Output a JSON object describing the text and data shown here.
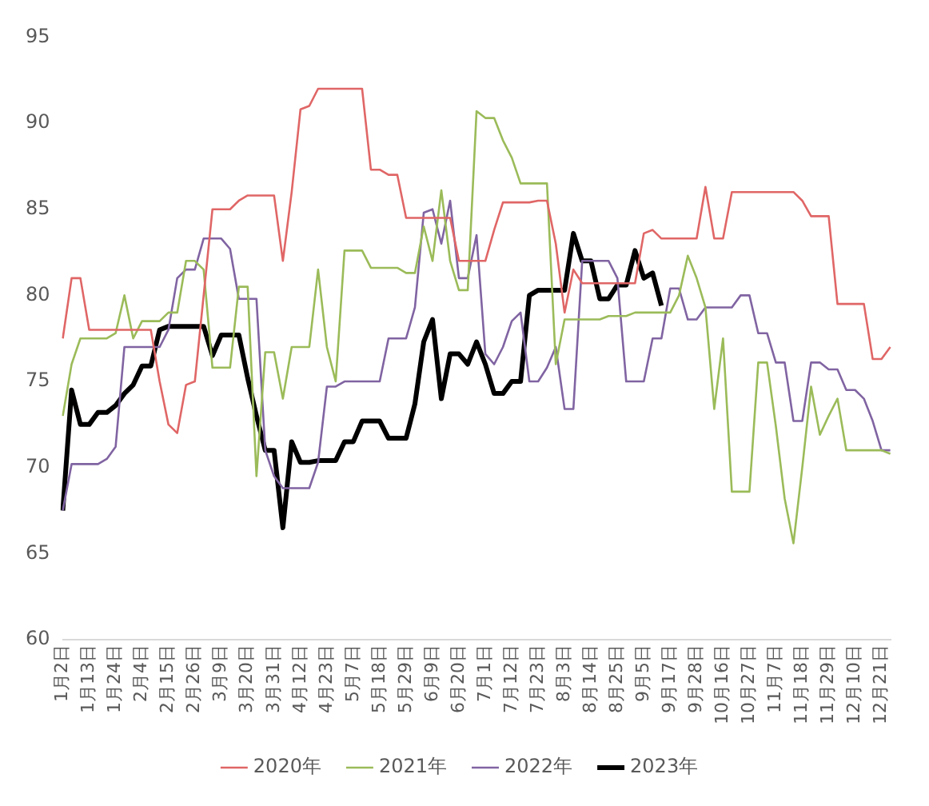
{
  "chart_data": {
    "type": "line",
    "categories": [
      "1月2日",
      null,
      null,
      "1月13日",
      null,
      null,
      "1月24日",
      null,
      null,
      "2月4日",
      null,
      null,
      "2月15日",
      null,
      null,
      "2月26日",
      null,
      null,
      "3月9日",
      null,
      null,
      "3月20日",
      null,
      null,
      "3月31日",
      null,
      null,
      "4月12日",
      null,
      null,
      "4月23日",
      null,
      null,
      "5月7日",
      null,
      null,
      "5月18日",
      null,
      null,
      "5月29日",
      null,
      null,
      "6月9日",
      null,
      null,
      "6月20日",
      null,
      null,
      "7月1日",
      null,
      null,
      "7月12日",
      null,
      null,
      "7月23日",
      null,
      null,
      "8月3日",
      null,
      null,
      "8月14日",
      null,
      null,
      "8月25日",
      null,
      null,
      "9月5日",
      null,
      null,
      "9月17日",
      null,
      null,
      "9月28日",
      null,
      null,
      "10月16日",
      null,
      null,
      "10月27日",
      null,
      null,
      "11月7日",
      null,
      null,
      "11月18日",
      null,
      null,
      "11月29日",
      null,
      null,
      "12月10日",
      null,
      null,
      "12月21日",
      null
    ],
    "series": [
      {
        "name": "2020年",
        "color": "#e06666",
        "values": [
          77.5,
          81,
          81,
          78,
          78,
          78,
          78,
          78,
          78,
          78,
          78,
          75,
          72.5,
          72,
          74.8,
          75,
          80,
          85,
          85,
          85,
          85.5,
          85.8,
          85.8,
          85.8,
          85.8,
          82,
          86,
          90.8,
          91,
          92,
          92,
          92,
          92,
          92,
          92,
          87.3,
          87.3,
          87,
          87,
          84.5,
          84.5,
          84.5,
          84.5,
          84.5,
          84.5,
          82,
          82,
          82,
          82,
          83.8,
          85.4,
          85.4,
          85.4,
          85.4,
          85.5,
          85.5,
          83,
          79,
          81.5,
          80.7,
          80.7,
          80.7,
          80.7,
          80.7,
          80.7,
          80.7,
          83.6,
          83.8,
          83.3,
          83.3,
          83.3,
          83.3,
          83.3,
          86.3,
          83.3,
          83.3,
          86,
          86,
          86,
          86,
          86,
          86,
          86,
          86,
          85.5,
          84.6,
          84.6,
          84.6,
          79.5,
          79.5,
          79.5,
          79.5,
          76.3,
          76.3,
          77
        ]
      },
      {
        "name": "2021年",
        "color": "#9bbb59",
        "values": [
          73,
          76,
          77.5,
          77.5,
          77.5,
          77.5,
          77.8,
          80,
          77.5,
          78.5,
          78.5,
          78.5,
          79,
          79,
          82,
          82,
          81.5,
          75.8,
          75.8,
          75.8,
          80.5,
          80.5,
          69.5,
          76.7,
          76.7,
          74,
          77,
          77,
          77,
          81.5,
          77,
          75,
          82.6,
          82.6,
          82.6,
          81.6,
          81.6,
          81.6,
          81.6,
          81.3,
          81.3,
          84,
          82,
          86.1,
          82,
          80.3,
          80.3,
          90.7,
          90.3,
          90.3,
          89,
          88,
          86.5,
          86.5,
          86.5,
          86.5,
          76,
          78.6,
          78.6,
          78.6,
          78.6,
          78.6,
          78.8,
          78.8,
          78.8,
          79,
          79,
          79,
          79,
          79,
          80,
          82.3,
          81,
          79.3,
          73.4,
          77.5,
          68.6,
          68.6,
          68.6,
          76.1,
          76.1,
          72.4,
          68.2,
          65.6,
          70,
          74.7,
          71.9,
          73,
          74,
          71,
          71,
          71,
          71,
          71,
          70.8
        ]
      },
      {
        "name": "2022年",
        "color": "#8064a2",
        "values": [
          67.5,
          70.2,
          70.2,
          70.2,
          70.2,
          70.5,
          71.2,
          77,
          77,
          77,
          77,
          77,
          78,
          81,
          81.5,
          81.5,
          83.3,
          83.3,
          83.3,
          82.7,
          79.8,
          79.8,
          79.8,
          71,
          69.5,
          68.8,
          68.8,
          68.8,
          68.8,
          70.3,
          74.7,
          74.7,
          75,
          75,
          75,
          75,
          75,
          77.5,
          77.5,
          77.5,
          79.3,
          84.8,
          85,
          83,
          85.5,
          81,
          81,
          83.5,
          76.6,
          76,
          77,
          78.5,
          79,
          75,
          75,
          75.8,
          77,
          73.4,
          73.4,
          82,
          82,
          82,
          82,
          81,
          75,
          75,
          75,
          77.5,
          77.5,
          80.4,
          80.4,
          78.6,
          78.6,
          79.3,
          79.3,
          79.3,
          79.3,
          80,
          80,
          77.8,
          77.8,
          76.1,
          76.1,
          72.7,
          72.7,
          76.1,
          76.1,
          75.7,
          75.7,
          74.5,
          74.5,
          74,
          72.7,
          71,
          71
        ]
      },
      {
        "name": "2023年",
        "color": "#000000",
        "values": [
          67.5,
          74.5,
          72.5,
          72.5,
          73.2,
          73.2,
          73.6,
          74.3,
          74.8,
          75.9,
          75.9,
          78,
          78.2,
          78.2,
          78.2,
          78.2,
          78.2,
          76.5,
          77.7,
          77.7,
          77.7,
          75.2,
          73,
          71,
          71,
          66.5,
          71.5,
          70.3,
          70.3,
          70.4,
          70.4,
          70.4,
          71.5,
          71.5,
          72.7,
          72.7,
          72.7,
          71.7,
          71.7,
          71.7,
          73.7,
          77.3,
          78.6,
          74,
          76.6,
          76.6,
          76,
          77.3,
          76,
          74.3,
          74.3,
          75,
          75,
          80,
          80.3,
          80.3,
          80.3,
          80.3,
          83.6,
          82,
          82,
          79.8,
          79.8,
          80.6,
          80.6,
          82.6,
          81,
          81.3,
          79.4,
          null,
          null,
          null,
          null,
          null,
          null,
          null,
          null,
          null,
          null,
          null,
          null,
          null,
          null,
          null,
          null,
          null,
          null,
          null,
          null,
          null,
          null,
          null,
          null,
          null,
          null
        ]
      }
    ],
    "ylim": [
      60,
      95
    ],
    "yticks": [
      60,
      65,
      70,
      75,
      80,
      85,
      90,
      95
    ],
    "grid": false,
    "legend": "bottom",
    "marker": "none",
    "line_style": "solid"
  }
}
